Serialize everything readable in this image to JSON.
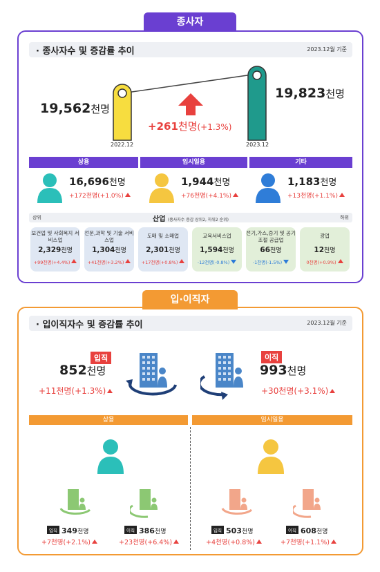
{
  "employees": {
    "tab": "종사자",
    "section_title": "· 종사자수 및 증감률 추이",
    "date": "2023.12월 기준",
    "prev": {
      "value": "19,562",
      "unit": "천명",
      "period": "2022.12"
    },
    "curr": {
      "value": "19,823",
      "unit": "천명",
      "period": "2023.12"
    },
    "change": {
      "value": "+261",
      "unit": "천명",
      "rate": "(+1.3%)"
    },
    "types": [
      {
        "label": "상용",
        "value": "16,696",
        "unit": "천명",
        "change": "+172",
        "change_unit": "천명",
        "rate": "(+1.0%)",
        "icon_color": "#2bbfb9"
      },
      {
        "label": "임시일용",
        "value": "1,944",
        "unit": "천명",
        "change": "+76",
        "change_unit": "천명",
        "rate": "(+4.1%)",
        "icon_color": "#f5c640"
      },
      {
        "label": "기타",
        "value": "1,183",
        "unit": "천명",
        "change": "+13",
        "change_unit": "천명",
        "rate": "(+1.1%)",
        "icon_color": "#2f7dd8"
      }
    ],
    "industry": {
      "title": "산업",
      "note": "(종사자수 증감 상위2, 하위2 순위)",
      "left_label": "상위",
      "right_label": "하위",
      "items": [
        {
          "name": "보건업 및 사회복지 서비스업",
          "value": "2,329",
          "unit": "천명",
          "change": "+99천명(+4.4%)",
          "dir": "up"
        },
        {
          "name": "전문,과학 및 기술 서비스업",
          "value": "1,304",
          "unit": "천명",
          "change": "+41천명(+3.2%)",
          "dir": "up"
        },
        {
          "name": "도매 및 소매업",
          "value": "2,301",
          "unit": "천명",
          "change": "+17천명(+0.8%)",
          "dir": "up"
        },
        {
          "name": "교육서비스업",
          "value": "1,594",
          "unit": "천명",
          "change": "-12천명(-0.8%)",
          "dir": "down"
        },
        {
          "name": "전기,가스,증기 및 공기조절 공급업",
          "value": "66",
          "unit": "천명",
          "change": "-1천명(-1.5%)",
          "dir": "down"
        },
        {
          "name": "광업",
          "value": "12",
          "unit": "천명",
          "change": "0천명(+0.9%)",
          "dir": "up"
        }
      ]
    }
  },
  "turnover": {
    "tab": "입·이직자",
    "section_title": "· 입이직자수 및 증감률 추이",
    "date": "2023.12월 기준",
    "hire": {
      "label": "입직",
      "value": "852",
      "unit": "천명",
      "change": "+11",
      "change_unit": "천명",
      "rate": "(+1.3%)"
    },
    "sep": {
      "label": "이직",
      "value": "993",
      "unit": "천명",
      "change": "+30",
      "change_unit": "천명",
      "rate": "(+3.1%)"
    },
    "groups": [
      {
        "label": "상용",
        "hire": {
          "tag": "입직",
          "value": "349",
          "unit": "천명",
          "change": "+7",
          "change_unit": "천명",
          "rate": "(+2.1%)"
        },
        "sep": {
          "tag": "이직",
          "value": "386",
          "unit": "천명",
          "change": "+23",
          "change_unit": "천명",
          "rate": "(+6.4%)"
        }
      },
      {
        "label": "임시일용",
        "hire": {
          "tag": "입직",
          "value": "503",
          "unit": "천명",
          "change": "+4",
          "change_unit": "천명",
          "rate": "(+0.8%)"
        },
        "sep": {
          "tag": "이직",
          "value": "608",
          "unit": "천명",
          "change": "+7",
          "change_unit": "천명",
          "rate": "(+1.1%)"
        }
      }
    ]
  }
}
